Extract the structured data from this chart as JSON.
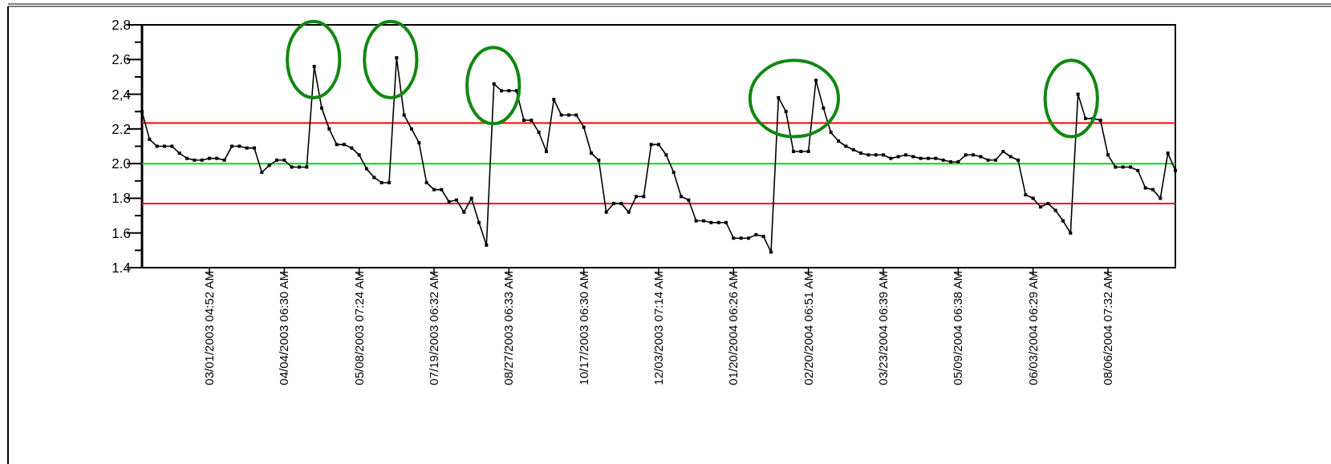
{
  "chart_data": {
    "type": "line",
    "categories": [
      null,
      null,
      null,
      null,
      null,
      null,
      null,
      null,
      null,
      "03/01/2003 04:52 AM",
      null,
      null,
      null,
      null,
      null,
      null,
      null,
      null,
      null,
      "04/04/2003 06:30 AM",
      null,
      null,
      null,
      null,
      null,
      null,
      null,
      null,
      null,
      "05/08/2003 07:24 AM",
      null,
      null,
      null,
      null,
      null,
      null,
      null,
      null,
      null,
      "07/19/2003 06:32 AM",
      null,
      null,
      null,
      null,
      null,
      null,
      null,
      null,
      null,
      "08/27/2003 06:33 AM",
      null,
      null,
      null,
      null,
      null,
      null,
      null,
      null,
      null,
      "10/17/2003 06:30 AM",
      null,
      null,
      null,
      null,
      null,
      null,
      null,
      null,
      null,
      "12/03/2003 07:14 AM",
      null,
      null,
      null,
      null,
      null,
      null,
      null,
      null,
      null,
      "01/20/2004 06:26 AM",
      null,
      null,
      null,
      null,
      null,
      null,
      null,
      null,
      null,
      "02/20/2004 06:51 AM",
      null,
      null,
      null,
      null,
      null,
      null,
      null,
      null,
      null,
      "03/23/2004 06:39 AM",
      null,
      null,
      null,
      null,
      null,
      null,
      null,
      null,
      null,
      "05/09/2004 06:38 AM",
      null,
      null,
      null,
      null,
      null,
      null,
      null,
      null,
      null,
      "06/03/2004 06:29 AM",
      null,
      null,
      null,
      null,
      null,
      null,
      null,
      null,
      null,
      "08/06/2004 07:32 AM",
      null,
      null,
      null,
      null,
      null,
      null,
      null,
      null,
      null
    ],
    "series": [
      {
        "color": "#000000",
        "values": [
          2.3,
          2.14,
          2.1,
          2.1,
          2.1,
          2.06,
          2.03,
          2.02,
          2.02,
          2.03,
          2.03,
          2.02,
          2.1,
          2.1,
          2.09,
          2.09,
          1.95,
          1.99,
          2.02,
          2.02,
          1.98,
          1.98,
          1.98,
          2.56,
          2.32,
          2.2,
          2.11,
          2.11,
          2.09,
          2.05,
          1.97,
          1.92,
          1.89,
          1.89,
          2.61,
          2.28,
          2.2,
          2.12,
          1.89,
          1.85,
          1.85,
          1.78,
          1.79,
          1.72,
          1.8,
          1.66,
          1.53,
          2.46,
          2.42,
          2.42,
          2.42,
          2.25,
          2.25,
          2.18,
          2.07,
          2.37,
          2.28,
          2.28,
          2.28,
          2.21,
          2.06,
          2.02,
          1.72,
          1.77,
          1.77,
          1.72,
          1.81,
          1.81,
          2.11,
          2.11,
          2.05,
          1.95,
          1.81,
          1.79,
          1.67,
          1.67,
          1.66,
          1.66,
          1.66,
          1.57,
          1.57,
          1.57,
          1.59,
          1.58,
          1.49,
          2.38,
          2.3,
          2.07,
          2.07,
          2.07,
          2.48,
          2.32,
          2.18,
          2.13,
          2.1,
          2.08,
          2.06,
          2.05,
          2.05,
          2.05,
          2.03,
          2.04,
          2.05,
          2.04,
          2.03,
          2.03,
          2.03,
          2.02,
          2.01,
          2.01,
          2.05,
          2.05,
          2.04,
          2.02,
          2.02,
          2.07,
          2.04,
          2.02,
          1.82,
          1.8,
          1.75,
          1.77,
          1.73,
          1.67,
          1.6,
          2.4,
          2.26,
          2.26,
          2.25,
          2.05,
          1.98,
          1.98,
          1.98,
          1.96,
          1.86,
          1.85,
          1.8,
          2.06,
          1.96
        ]
      }
    ],
    "ylim": [
      1.4,
      2.8
    ],
    "yticks": [
      1.4,
      {
        "value": 1.5,
        "label": null
      },
      1.6,
      {
        "value": 1.7,
        "label": null
      },
      1.8,
      {
        "value": 1.9,
        "label": null
      },
      {
        "value": 2.0,
        "label": "2.0"
      },
      {
        "value": 2.1,
        "label": null
      },
      2.2,
      {
        "value": 2.3,
        "label": null
      },
      {
        "value": 2.4,
        "label": "2,4"
      },
      {
        "value": 2.5,
        "label": null
      },
      2.6,
      {
        "value": 2.7,
        "label": null
      },
      2.8
    ],
    "ref_lines": [
      {
        "axis": "y",
        "value": 2.234,
        "color": "#ff0000"
      },
      {
        "axis": "y",
        "value": 2.0,
        "color": "#00dd00"
      },
      {
        "axis": "y",
        "value": 1.77,
        "color": "#ff0000"
      }
    ],
    "marker": "square",
    "line_style": "solid",
    "grid": false
  }
}
